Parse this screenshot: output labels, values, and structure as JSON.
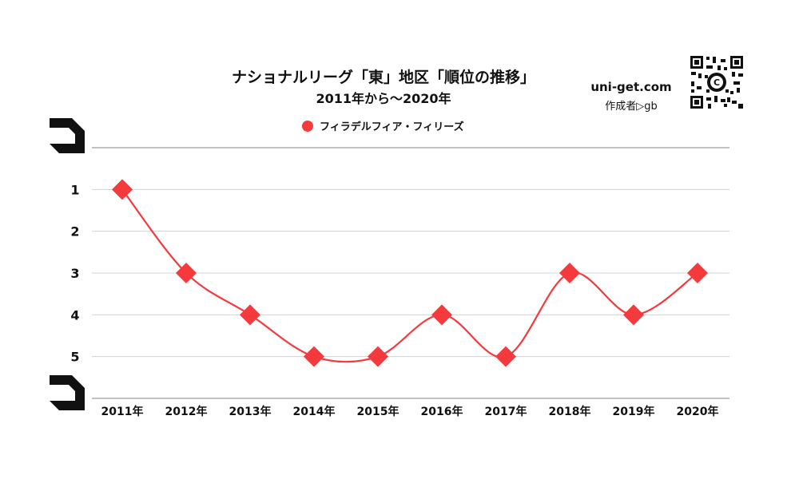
{
  "chart_data": {
    "type": "line",
    "title": "ナショナルリーグ「東」地区「順位の推移」",
    "subtitle": "2011年から〜2020年",
    "categories": [
      "2011年",
      "2012年",
      "2013年",
      "2014年",
      "2015年",
      "2016年",
      "2017年",
      "2018年",
      "2019年",
      "2020年"
    ],
    "series": [
      {
        "name": "フィラデルフィア・フィリーズ",
        "values": [
          1,
          3,
          4,
          5,
          5,
          4,
          5,
          3,
          4,
          3
        ]
      }
    ],
    "yticks": [
      "1",
      "2",
      "3",
      "4",
      "5"
    ],
    "ylim": [
      0,
      6
    ],
    "y_inverted": true,
    "grid": true,
    "legend": "top-center",
    "color": "#f43a3c"
  },
  "branding": {
    "site": "uni-get.com",
    "author": "作成者▷gb",
    "qr_icon": "qr-code-icon"
  }
}
